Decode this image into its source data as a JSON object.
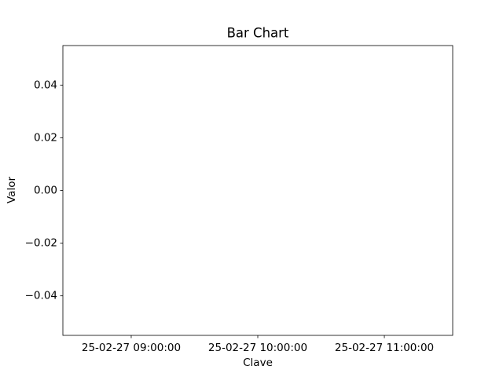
{
  "chart_data": {
    "type": "bar",
    "title": "Bar Chart",
    "xlabel": "Clave",
    "ylabel": "Valor",
    "categories": [
      "25-02-27 09:00:00",
      "25-02-27 10:00:00",
      "25-02-27 11:00:00"
    ],
    "values": [
      0,
      0,
      0
    ],
    "color": "#1f77b4",
    "ylim": [
      -0.055,
      0.055
    ],
    "yticks": [
      {
        "value": -0.04,
        "label": "−0.04"
      },
      {
        "value": -0.02,
        "label": "−0.02"
      },
      {
        "value": 0,
        "label": "0.00"
      },
      {
        "value": 0.02,
        "label": "0.02"
      },
      {
        "value": 0.04,
        "label": "0.04"
      }
    ],
    "grid": false
  }
}
